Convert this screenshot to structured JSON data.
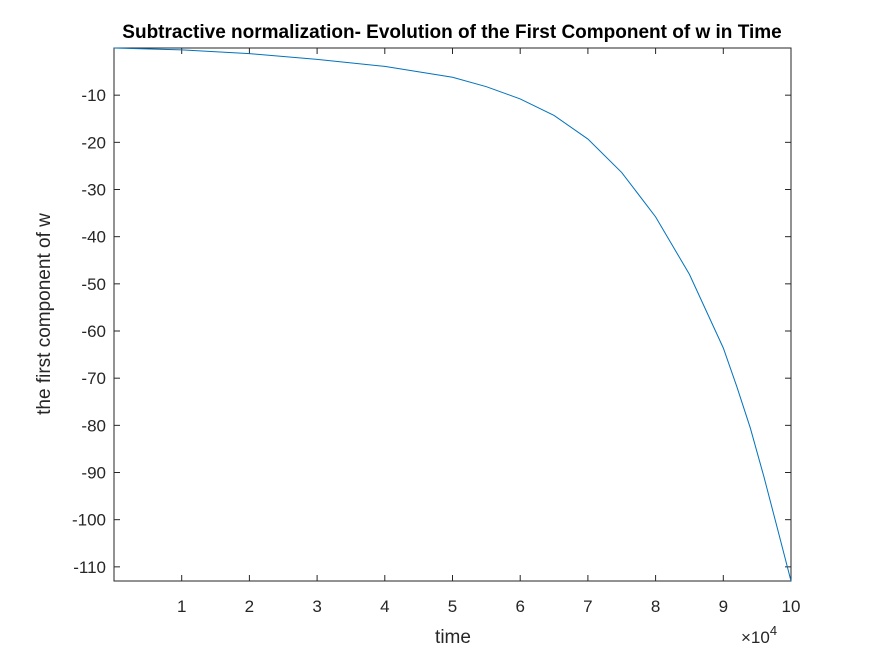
{
  "chart_data": {
    "type": "line",
    "title": "Subtractive normalization- Evolution of the First Component of w in Time",
    "xlabel": "time",
    "ylabel": "the first component of w",
    "x_multiplier_label": "×10",
    "x_multiplier_exponent": "4",
    "x_scale": 10000,
    "xlim": [
      0,
      100000
    ],
    "ylim": [
      -113,
      0
    ],
    "grid": false,
    "line_color": "#0072BD",
    "x_ticks": [
      10000,
      20000,
      30000,
      40000,
      50000,
      60000,
      70000,
      80000,
      90000,
      100000
    ],
    "y_ticks": [
      -10,
      -20,
      -30,
      -40,
      -50,
      -60,
      -70,
      -80,
      -90,
      -100,
      -110
    ],
    "series": [
      {
        "x": [
          0,
          10000,
          20000,
          30000,
          40000,
          50000,
          55000,
          60000,
          65000,
          70000,
          75000,
          80000,
          85000,
          90000,
          92000,
          94000,
          96000,
          98000,
          100000
        ],
        "y": [
          0,
          -0.4,
          -1.2,
          -2.4,
          -3.9,
          -6.2,
          -8.2,
          -10.8,
          -14.3,
          -19.3,
          -26.4,
          -35.8,
          -48,
          -63.6,
          -71.8,
          -80.6,
          -90.9,
          -101.9,
          -113
        ]
      }
    ]
  }
}
